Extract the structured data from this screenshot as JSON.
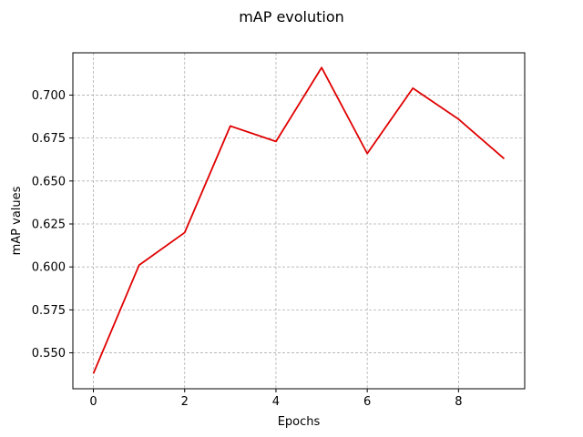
{
  "chart_data": {
    "type": "line",
    "title": "mAP evolution",
    "xlabel": "Epochs",
    "ylabel": "mAP values",
    "xlim": [
      -0.45,
      9.45
    ],
    "ylim": [
      0.5291,
      0.7246
    ],
    "x_ticks": [
      0,
      2,
      4,
      6,
      8
    ],
    "x_tick_labels": [
      "0",
      "2",
      "4",
      "6",
      "8"
    ],
    "y_ticks": [
      0.55,
      0.575,
      0.6,
      0.625,
      0.65,
      0.675,
      0.7
    ],
    "y_tick_labels": [
      "0.550",
      "0.575",
      "0.600",
      "0.625",
      "0.650",
      "0.675",
      "0.700"
    ],
    "grid": true,
    "series": [
      {
        "color": "#e00000",
        "x": [
          0,
          1,
          2,
          3,
          4,
          5,
          6,
          7,
          8,
          9
        ],
        "values": [
          0.538,
          0.601,
          0.62,
          0.682,
          0.673,
          0.716,
          0.666,
          0.704,
          0.686,
          0.663
        ]
      }
    ]
  }
}
